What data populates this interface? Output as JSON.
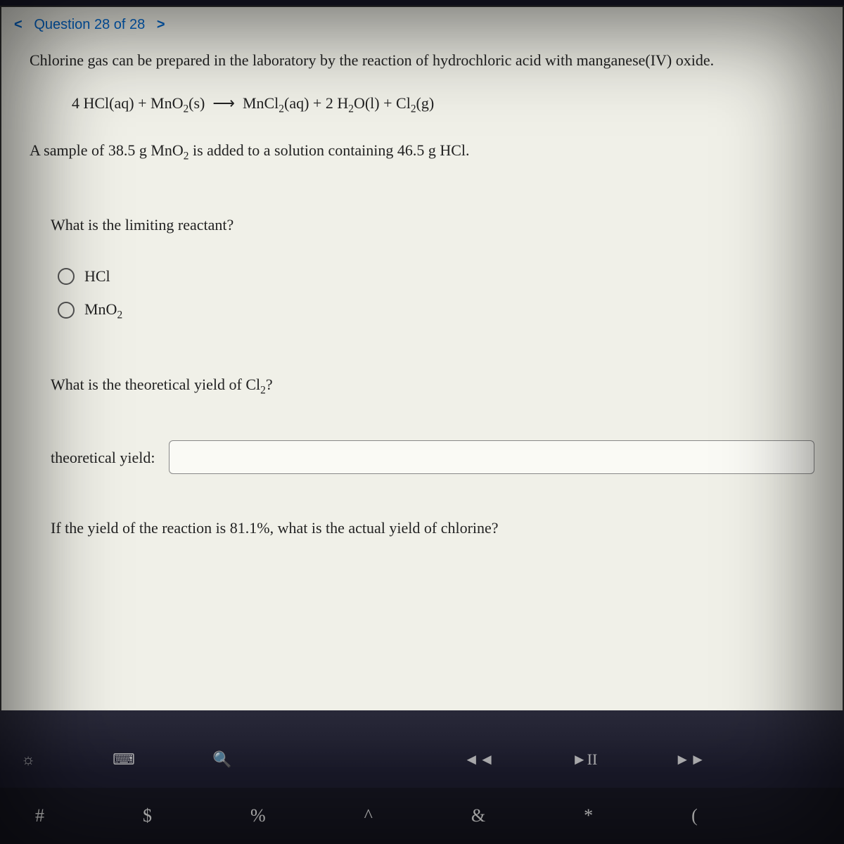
{
  "nav": {
    "prev": "<",
    "label": "Question 28 of 28",
    "next": ">"
  },
  "intro": "Chlorine gas can be prepared in the laboratory by the reaction of hydrochloric acid with manganese(IV) oxide.",
  "equation": {
    "lhs_coef1": "4",
    "lhs1": "HCl(aq)",
    "plus1": "+",
    "lhs2_a": "MnO",
    "lhs2_sub": "2",
    "lhs2_b": "(s)",
    "arrow": "⟶",
    "rhs1_a": "MnCl",
    "rhs1_sub": "2",
    "rhs1_b": "(aq)",
    "plus2": "+",
    "rhs2_coef": "2",
    "rhs2_a": "H",
    "rhs2_sub1": "2",
    "rhs2_b": "O(l)",
    "plus3": "+",
    "rhs3_a": "Cl",
    "rhs3_sub": "2",
    "rhs3_b": "(g)"
  },
  "sample_a": "A sample of 38.5 g MnO",
  "sample_sub": "2",
  "sample_b": " is added to a solution containing 46.5 g HCl.",
  "q1": "What is the limiting reactant?",
  "options": {
    "o1": "HCl",
    "o2_a": "MnO",
    "o2_sub": "2"
  },
  "q2_a": "What is the theoretical yield of Cl",
  "q2_sub": "2",
  "q2_b": "?",
  "input_label": "theoretical yield:",
  "input_value": "",
  "q3": "If the yield of the reaction is 81.1%, what is the actual yield of chlorine?",
  "fn_icons": {
    "brightness": "☼",
    "keyboard": "⌨",
    "search": "🔍",
    "rewind": "◄◄",
    "play": "►II",
    "forward": "►►"
  },
  "keys": {
    "hash": "#",
    "dollar": "$",
    "percent": "%",
    "caret": "^",
    "amp": "&",
    "star": "*",
    "paren": "("
  },
  "colors": {
    "link": "#0066cc",
    "page_bg": "#f0f0e8",
    "body_bg": "#1a1a2a"
  }
}
